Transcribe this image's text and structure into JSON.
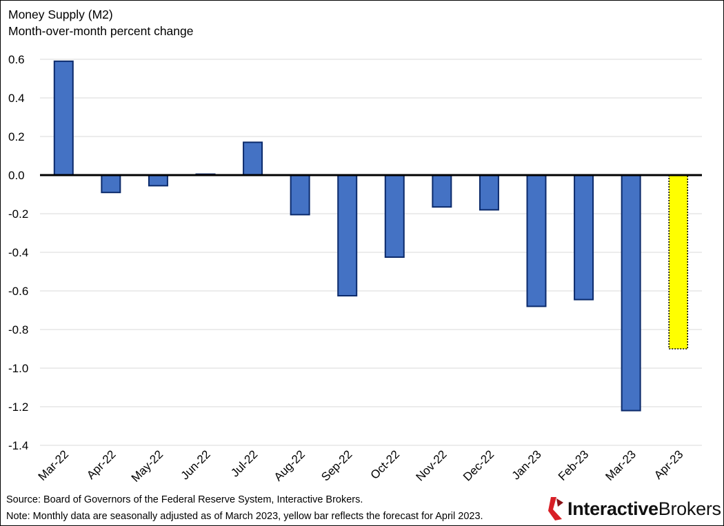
{
  "chart_data": {
    "type": "bar",
    "title": "Money Supply (M2)",
    "subtitle": "Month-over-month percent change",
    "xlabel": "",
    "ylabel": "",
    "ylim": [
      -1.4,
      0.6
    ],
    "yticks": [
      0.6,
      0.4,
      0.2,
      0.0,
      -0.2,
      -0.4,
      -0.6,
      -0.8,
      -1.0,
      -1.2,
      -1.4
    ],
    "ytick_labels": [
      "0.6",
      "0.4",
      "0.2",
      "0.0",
      "-0.2",
      "-0.4",
      "-0.6",
      "-0.8",
      "-1.0",
      "-1.2",
      "-1.4"
    ],
    "grid": true,
    "categories": [
      "Mar-22",
      "Apr-22",
      "May-22",
      "Jun-22",
      "Jul-22",
      "Aug-22",
      "Sep-22",
      "Oct-22",
      "Nov-22",
      "Dec-22",
      "Jan-23",
      "Feb-23",
      "Mar-23",
      "Apr-23"
    ],
    "values": [
      0.59,
      -0.09,
      -0.055,
      0.005,
      0.17,
      -0.205,
      -0.625,
      -0.425,
      -0.165,
      -0.18,
      -0.68,
      -0.645,
      -1.22,
      -0.9
    ],
    "forecast": [
      false,
      false,
      false,
      false,
      false,
      false,
      false,
      false,
      false,
      false,
      false,
      false,
      false,
      true
    ],
    "colors": {
      "actual": "#4472C4",
      "actual_border": "#0B2A6B",
      "forecast": "#FFFF00",
      "forecast_border": "#000000",
      "grid": "#D9D9D9",
      "zero_line": "#000000"
    }
  },
  "footer": {
    "source": "Source: Board of Governors of the Federal Reserve System, Interactive Brokers.",
    "note": "Note: Monthly data are seasonally adjusted as of March 2023, yellow bar reflects the forecast for April 2023."
  },
  "logo": {
    "brand_part1": "Interactive",
    "brand_part2": "Brokers",
    "icon": "interactive-brokers-logo-icon",
    "color": "#D81F26"
  }
}
